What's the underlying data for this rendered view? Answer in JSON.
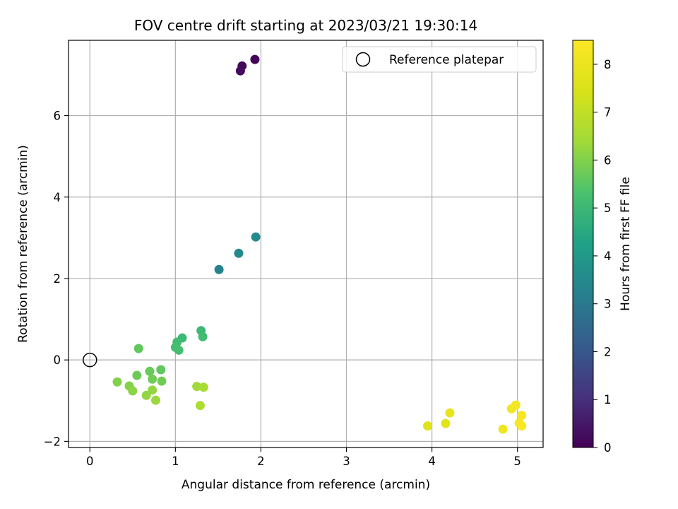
{
  "chart_data": {
    "type": "scatter",
    "title": "FOV centre drift starting at 2023/03/21 19:30:14",
    "xlabel": "Angular distance from reference (arcmin)",
    "ylabel": "Rotation from reference (arcmin)",
    "xlim": [
      -0.25,
      5.3
    ],
    "ylim": [
      -2.15,
      7.85
    ],
    "xticks": [
      0,
      1,
      2,
      3,
      4,
      5
    ],
    "xtick_labels": [
      "0",
      "1",
      "2",
      "3",
      "4",
      "5"
    ],
    "yticks": [
      -2,
      0,
      2,
      4,
      6
    ],
    "ytick_labels": [
      "−2",
      "0",
      "2",
      "4",
      "6"
    ],
    "grid": true,
    "legend": {
      "position": "top-right",
      "entries": [
        "Reference platepar"
      ]
    },
    "reference_point": {
      "x": 0,
      "y": 0,
      "marker": "open-circle"
    },
    "colorbar": {
      "label": "Hours from first FF file",
      "colormap": "viridis",
      "range": [
        0,
        8.5
      ],
      "ticks": [
        0,
        1,
        2,
        3,
        4,
        5,
        6,
        7,
        8
      ],
      "tick_labels": [
        "0",
        "1",
        "2",
        "3",
        "4",
        "5",
        "6",
        "7",
        "8"
      ]
    },
    "points": [
      {
        "x": 1.93,
        "y": 7.38,
        "c": 0.1
      },
      {
        "x": 1.78,
        "y": 7.22,
        "c": 0.15
      },
      {
        "x": 1.76,
        "y": 7.1,
        "c": 0.2
      },
      {
        "x": 1.94,
        "y": 3.02,
        "c": 3.6
      },
      {
        "x": 1.74,
        "y": 2.62,
        "c": 3.5
      },
      {
        "x": 1.51,
        "y": 2.22,
        "c": 3.3
      },
      {
        "x": 1.08,
        "y": 0.54,
        "c": 5.0
      },
      {
        "x": 1.3,
        "y": 0.72,
        "c": 5.0
      },
      {
        "x": 1.32,
        "y": 0.57,
        "c": 5.1
      },
      {
        "x": 1.02,
        "y": 0.44,
        "c": 5.1
      },
      {
        "x": 1.0,
        "y": 0.31,
        "c": 5.2
      },
      {
        "x": 1.04,
        "y": 0.24,
        "c": 5.2
      },
      {
        "x": 0.57,
        "y": 0.28,
        "c": 5.6
      },
      {
        "x": 0.83,
        "y": -0.24,
        "c": 5.6
      },
      {
        "x": 0.7,
        "y": -0.28,
        "c": 5.7
      },
      {
        "x": 0.55,
        "y": -0.38,
        "c": 5.7
      },
      {
        "x": 0.73,
        "y": -0.47,
        "c": 5.8
      },
      {
        "x": 0.84,
        "y": -0.52,
        "c": 5.8
      },
      {
        "x": 0.32,
        "y": -0.54,
        "c": 6.0
      },
      {
        "x": 0.46,
        "y": -0.64,
        "c": 6.0
      },
      {
        "x": 0.5,
        "y": -0.76,
        "c": 6.1
      },
      {
        "x": 0.73,
        "y": -0.74,
        "c": 6.2
      },
      {
        "x": 0.66,
        "y": -0.87,
        "c": 6.2
      },
      {
        "x": 0.77,
        "y": -0.99,
        "c": 6.3
      },
      {
        "x": 1.25,
        "y": -0.65,
        "c": 6.4
      },
      {
        "x": 1.33,
        "y": -0.67,
        "c": 6.5
      },
      {
        "x": 1.29,
        "y": -1.12,
        "c": 6.6
      },
      {
        "x": 3.95,
        "y": -1.62,
        "c": 7.6
      },
      {
        "x": 4.16,
        "y": -1.56,
        "c": 7.7
      },
      {
        "x": 4.21,
        "y": -1.3,
        "c": 7.8
      },
      {
        "x": 4.83,
        "y": -1.7,
        "c": 8.1
      },
      {
        "x": 4.93,
        "y": -1.2,
        "c": 8.2
      },
      {
        "x": 4.98,
        "y": -1.11,
        "c": 8.2
      },
      {
        "x": 5.05,
        "y": -1.36,
        "c": 8.3
      },
      {
        "x": 5.02,
        "y": -1.55,
        "c": 8.3
      },
      {
        "x": 5.05,
        "y": -1.62,
        "c": 8.4
      }
    ]
  }
}
